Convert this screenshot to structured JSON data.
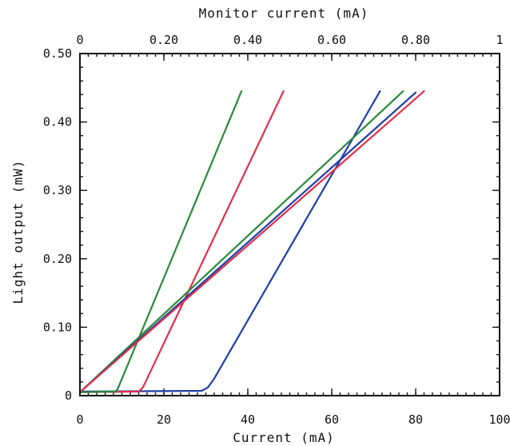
{
  "chart_data": {
    "type": "line",
    "title": "",
    "xlabel": "Current (mA)",
    "x2label": "Monitor current (mA)",
    "ylabel": "Light output (mW)",
    "xlim": [
      0,
      100
    ],
    "x2lim": [
      0,
      1.0
    ],
    "ylim": [
      0,
      0.5
    ],
    "xticks": [
      "0",
      "20",
      "40",
      "60",
      "80",
      "100"
    ],
    "x2ticks": [
      "0",
      "0.20",
      "0.40",
      "0.60",
      "0.80",
      "1"
    ],
    "yticks": [
      "0",
      "0.10",
      "0.20",
      "0.30",
      "0.40",
      "0.50"
    ],
    "grid": false,
    "legend": "none",
    "series": [
      {
        "axis": "bottom",
        "color": "#1f3fa8",
        "x": [
          0,
          29,
          30.5,
          32,
          71.5
        ],
        "y": [
          0.006,
          0.007,
          0.012,
          0.025,
          0.445
        ]
      },
      {
        "axis": "bottom",
        "color": "#e0304a",
        "x": [
          0,
          14,
          15,
          48.5
        ],
        "y": [
          0.005,
          0.006,
          0.012,
          0.445
        ]
      },
      {
        "axis": "bottom",
        "color": "#2a8a3a",
        "x": [
          0,
          8.5,
          9.0,
          38.5
        ],
        "y": [
          0.005,
          0.006,
          0.01,
          0.445
        ]
      },
      {
        "axis": "top",
        "color": "#2a8a3a",
        "x": [
          0,
          0.77
        ],
        "y": [
          0.005,
          0.445
        ]
      },
      {
        "axis": "top",
        "color": "#1f3fa8",
        "x": [
          0,
          0.8
        ],
        "y": [
          0.005,
          0.443
        ]
      },
      {
        "axis": "top",
        "color": "#e0304a",
        "x": [
          0,
          0.82
        ],
        "y": [
          0.005,
          0.445
        ]
      }
    ]
  }
}
